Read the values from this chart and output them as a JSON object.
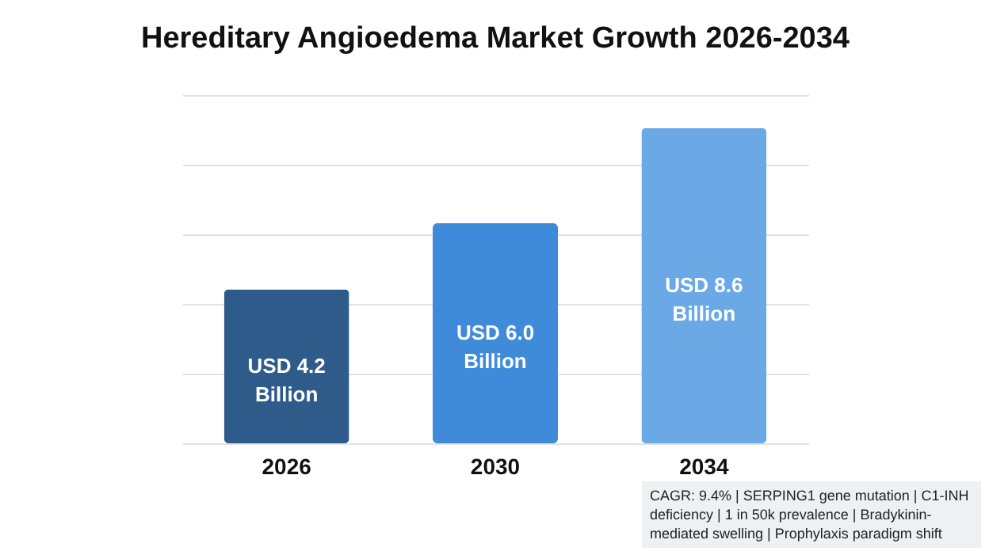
{
  "chart_data": {
    "type": "bar",
    "title": "Hereditary Angioedema Market Growth 2026-2034",
    "categories": [
      "2026",
      "2030",
      "2034"
    ],
    "values": [
      4.2,
      6.0,
      8.6
    ],
    "colors": [
      "#2e5b8a",
      "#3f8bd9",
      "#6aa9e6"
    ],
    "value_labels": [
      "USD 4.2 Billion",
      "USD 6.0 Billion",
      "USD 8.6 Billion"
    ],
    "ylim": [
      0,
      9.5
    ],
    "yticks": [
      {
        "value": 0,
        "label": null
      },
      {
        "value": 1.9,
        "label": null
      },
      {
        "value": 3.8,
        "label": null
      },
      {
        "value": 5.7,
        "label": null
      },
      {
        "value": 7.6,
        "label": null
      },
      {
        "value": 9.5,
        "label": null
      }
    ],
    "grid": "y",
    "tick_labels": "x",
    "annotations": [
      "CAGR: 9.4% | SERPING1 gene mutation | C1-INH deficiency | 1 in 50k prevalence | Bradykinin-mediated swelling | Prophylaxis paradigm shift"
    ]
  }
}
